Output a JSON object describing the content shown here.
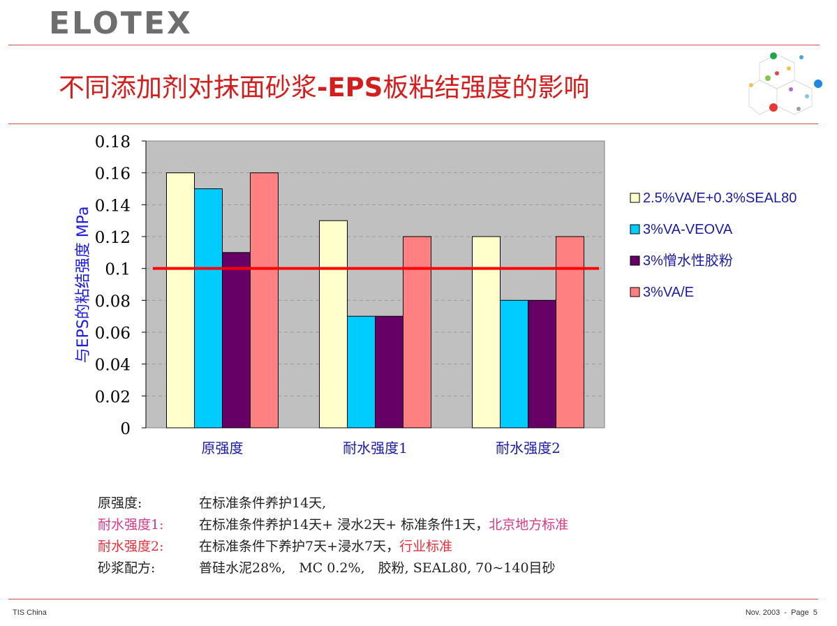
{
  "header": {
    "logo": "ELOTEX"
  },
  "title": {
    "part1": "不同添加剂对抹面砂浆",
    "bold": "-EPS",
    "part2": "板粘结强度的影响"
  },
  "chart_data": {
    "type": "bar",
    "categories": [
      "原强度",
      "耐水强度1",
      "耐水强度2"
    ],
    "series": [
      {
        "name": "2.5%VA/E+0.3%SEAL80",
        "color": "#ffffcc",
        "values": [
          0.16,
          0.13,
          0.12
        ]
      },
      {
        "name": "3%VA-VEOVA",
        "color": "#00ccff",
        "values": [
          0.15,
          0.07,
          0.08
        ]
      },
      {
        "name": "3%憎水性胶粉",
        "color": "#660066",
        "values": [
          0.11,
          0.07,
          0.08
        ]
      },
      {
        "name": "3%VA/E",
        "color": "#ff8080",
        "values": [
          0.16,
          0.12,
          0.12
        ]
      }
    ],
    "ylabel": "与EPS的粘结强度 MPa",
    "ylim": [
      0,
      0.18
    ],
    "yticks": [
      "0",
      "0.02",
      "0.04",
      "0.06",
      "0.08",
      "0.1",
      "0.12",
      "0.14",
      "0.16",
      "0.18"
    ],
    "reference_line": {
      "value": 0.1,
      "color": "#ff0000"
    },
    "grid": true,
    "legend_position": "right",
    "plot_background": "#c0c0c0"
  },
  "notes": [
    {
      "label": "原强度:",
      "text": "在标准条件养护14天,",
      "extra": ""
    },
    {
      "label": "耐水强度1:",
      "text": "在标准条件养护14天+ 浸水2天+ 标准条件1天，",
      "extra": "北京地方标准"
    },
    {
      "label": "耐水强度2:",
      "text": "在标准条件下养护7天+浸水7天，",
      "extra": "行业标准"
    },
    {
      "label": "砂浆配方:",
      "text": "普硅水泥28%,　MC 0.2%,　胶粉, SEAL80, 70~140目砂",
      "extra": ""
    }
  ],
  "footer": {
    "left": "TIS China",
    "right": "Nov. 2003  -  Page  5"
  }
}
